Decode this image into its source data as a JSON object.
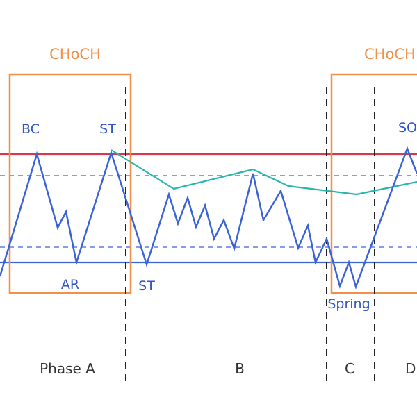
{
  "diagram": {
    "colors": {
      "background": "#ffffff",
      "choch_box": "#f0904a",
      "choch_text": "#f0904a",
      "price_path": "#3a63d8",
      "resistance_line": "#d63a4a",
      "support_line": "#3a63d8",
      "dashed_level": "#3a63d8",
      "trend_line": "#27b6ae",
      "phase_divider": "#222222",
      "price_label": "#2f55c8",
      "phase_label": "#333333"
    },
    "choch_labels": [
      "CHoCH",
      "CHoCH"
    ],
    "price_labels": {
      "bc": "BC",
      "st_top": "ST",
      "ar": "AR",
      "st_bottom": "ST",
      "spring": "Spring",
      "sos": "SOS"
    },
    "phases": [
      "Phase A",
      "B",
      "C",
      "D"
    ]
  }
}
